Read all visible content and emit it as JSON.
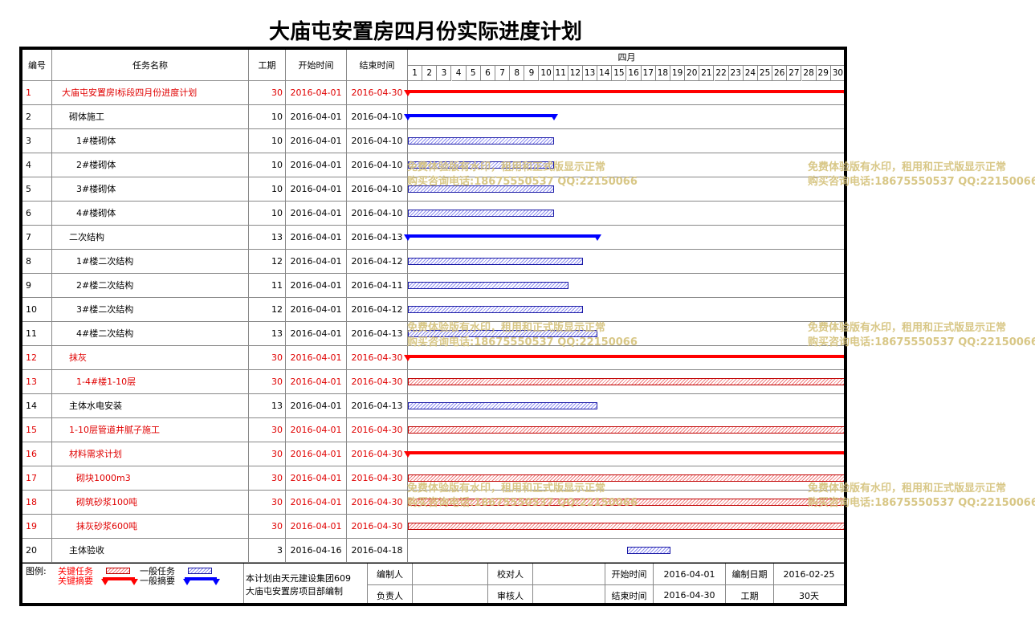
{
  "title": "大庙屯安置房四月份实际进度计划",
  "header": {
    "id": "编号",
    "name": "任务名称",
    "duration": "工期",
    "start": "开始时间",
    "end": "结束时间",
    "month": "四月",
    "days": [
      "1",
      "2",
      "3",
      "4",
      "5",
      "6",
      "7",
      "8",
      "9",
      "10",
      "11",
      "12",
      "13",
      "14",
      "15",
      "16",
      "17",
      "18",
      "19",
      "20",
      "21",
      "22",
      "23",
      "24",
      "25",
      "26",
      "27",
      "28",
      "29",
      "30"
    ]
  },
  "tasks": [
    {
      "id": "1",
      "name": "大庙屯安置房Ⅰ标段四月份进度计划",
      "duration": "30",
      "start": "2016-04-01",
      "end": "2016-04-30",
      "type": "summary",
      "critical": true,
      "s": 1,
      "e": 30,
      "indent": 0
    },
    {
      "id": "2",
      "name": "砌体施工",
      "duration": "10",
      "start": "2016-04-01",
      "end": "2016-04-10",
      "type": "summary",
      "critical": false,
      "s": 1,
      "e": 10,
      "indent": 1
    },
    {
      "id": "3",
      "name": "1#楼砌体",
      "duration": "10",
      "start": "2016-04-01",
      "end": "2016-04-10",
      "type": "task",
      "critical": false,
      "s": 1,
      "e": 10,
      "indent": 2
    },
    {
      "id": "4",
      "name": "2#楼砌体",
      "duration": "10",
      "start": "2016-04-01",
      "end": "2016-04-10",
      "type": "task",
      "critical": false,
      "s": 1,
      "e": 10,
      "indent": 2
    },
    {
      "id": "5",
      "name": "3#楼砌体",
      "duration": "10",
      "start": "2016-04-01",
      "end": "2016-04-10",
      "type": "task",
      "critical": false,
      "s": 1,
      "e": 10,
      "indent": 2
    },
    {
      "id": "6",
      "name": "4#楼砌体",
      "duration": "10",
      "start": "2016-04-01",
      "end": "2016-04-10",
      "type": "task",
      "critical": false,
      "s": 1,
      "e": 10,
      "indent": 2
    },
    {
      "id": "7",
      "name": "二次结构",
      "duration": "13",
      "start": "2016-04-01",
      "end": "2016-04-13",
      "type": "summary",
      "critical": false,
      "s": 1,
      "e": 13,
      "indent": 1
    },
    {
      "id": "8",
      "name": "1#楼二次结构",
      "duration": "12",
      "start": "2016-04-01",
      "end": "2016-04-12",
      "type": "task",
      "critical": false,
      "s": 1,
      "e": 12,
      "indent": 2
    },
    {
      "id": "9",
      "name": "2#楼二次结构",
      "duration": "11",
      "start": "2016-04-01",
      "end": "2016-04-11",
      "type": "task",
      "critical": false,
      "s": 1,
      "e": 11,
      "indent": 2
    },
    {
      "id": "10",
      "name": "3#楼二次结构",
      "duration": "12",
      "start": "2016-04-01",
      "end": "2016-04-12",
      "type": "task",
      "critical": false,
      "s": 1,
      "e": 12,
      "indent": 2
    },
    {
      "id": "11",
      "name": "4#楼二次结构",
      "duration": "13",
      "start": "2016-04-01",
      "end": "2016-04-13",
      "type": "task",
      "critical": false,
      "s": 1,
      "e": 13,
      "indent": 2
    },
    {
      "id": "12",
      "name": "抹灰",
      "duration": "30",
      "start": "2016-04-01",
      "end": "2016-04-30",
      "type": "summary",
      "critical": true,
      "s": 1,
      "e": 30,
      "indent": 1
    },
    {
      "id": "13",
      "name": "1-4#楼1-10层",
      "duration": "30",
      "start": "2016-04-01",
      "end": "2016-04-30",
      "type": "task",
      "critical": true,
      "s": 1,
      "e": 30,
      "indent": 2
    },
    {
      "id": "14",
      "name": "主体水电安装",
      "duration": "13",
      "start": "2016-04-01",
      "end": "2016-04-13",
      "type": "task",
      "critical": false,
      "s": 1,
      "e": 13,
      "indent": 1
    },
    {
      "id": "15",
      "name": "1-10层管道井腻子施工",
      "duration": "30",
      "start": "2016-04-01",
      "end": "2016-04-30",
      "type": "task",
      "critical": true,
      "s": 1,
      "e": 30,
      "indent": 1
    },
    {
      "id": "16",
      "name": "材料需求计划",
      "duration": "30",
      "start": "2016-04-01",
      "end": "2016-04-30",
      "type": "summary",
      "critical": true,
      "s": 1,
      "e": 30,
      "indent": 1
    },
    {
      "id": "17",
      "name": "砌块1000m3",
      "duration": "30",
      "start": "2016-04-01",
      "end": "2016-04-30",
      "type": "task",
      "critical": true,
      "s": 1,
      "e": 30,
      "indent": 2
    },
    {
      "id": "18",
      "name": "砌筑砂浆100吨",
      "duration": "30",
      "start": "2016-04-01",
      "end": "2016-04-30",
      "type": "task",
      "critical": true,
      "s": 1,
      "e": 30,
      "indent": 2
    },
    {
      "id": "19",
      "name": "抹灰砂浆600吨",
      "duration": "30",
      "start": "2016-04-01",
      "end": "2016-04-30",
      "type": "task",
      "critical": true,
      "s": 1,
      "e": 30,
      "indent": 2
    },
    {
      "id": "20",
      "name": "主体验收",
      "duration": "3",
      "start": "2016-04-16",
      "end": "2016-04-18",
      "type": "task",
      "critical": false,
      "s": 16,
      "e": 18,
      "indent": 1
    }
  ],
  "footer": {
    "legend_title": "图例:",
    "legend_critical_task": "关键任务",
    "legend_critical_summary": "关键摘要",
    "legend_normal_task": "一般任务",
    "legend_normal_summary": "一般摘要",
    "note_line1": "本计划由天元建设集团609",
    "note_line2": "大庙屯安置房项目部编制",
    "editor_label": "编制人",
    "editor_value": "",
    "checker_label": "校对人",
    "checker_value": "",
    "start_label": "开始时间",
    "start_value": "2016-04-01",
    "compile_date_label": "编制日期",
    "compile_date_value": "2016-02-25",
    "owner_label": "负责人",
    "owner_value": "",
    "reviewer_label": "审核人",
    "reviewer_value": "",
    "end_label": "结束时间",
    "end_value": "2016-04-30",
    "duration_label": "工期",
    "duration_value": "30天"
  },
  "watermark": {
    "line1": "免费体验版有水印，租用和正式版显示正常",
    "line2": "购买咨询电话:18675550537 QQ:22150066"
  },
  "colors": {
    "critical": "#ff0000",
    "normal": "#0000ff",
    "watermark": "#d4c17a"
  }
}
